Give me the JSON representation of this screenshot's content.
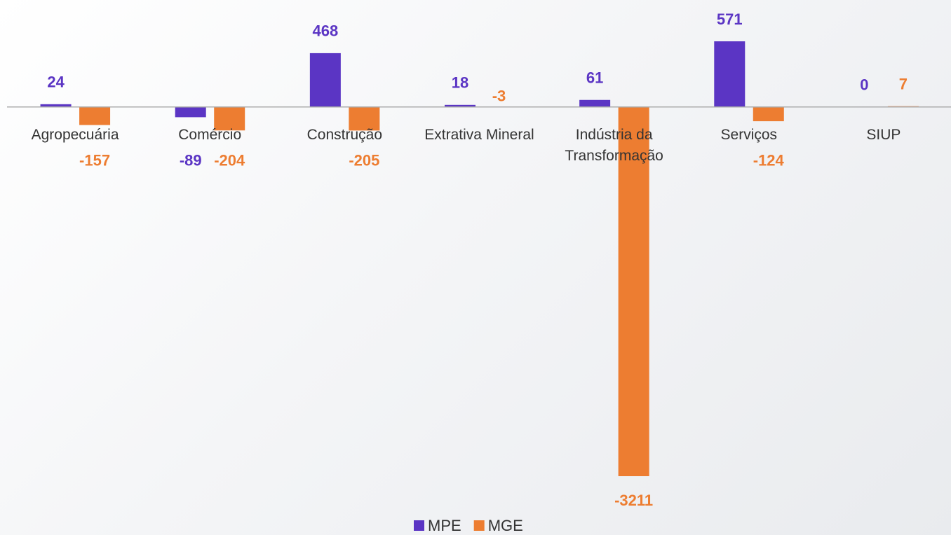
{
  "chart_data": {
    "type": "bar",
    "categories": [
      "Agropecuária",
      "Comércio",
      "Construção",
      "Extrativa Mineral",
      "Indústria da Transformação",
      "Serviços",
      "SIUP"
    ],
    "series": [
      {
        "name": "MPE",
        "color": "#5b35c4",
        "values": [
          24,
          -89,
          468,
          18,
          61,
          571,
          0
        ]
      },
      {
        "name": "MGE",
        "color": "#ed7d31",
        "values": [
          -157,
          -204,
          -205,
          -3,
          -3211,
          -124,
          7
        ]
      }
    ],
    "legend": "bottom"
  }
}
